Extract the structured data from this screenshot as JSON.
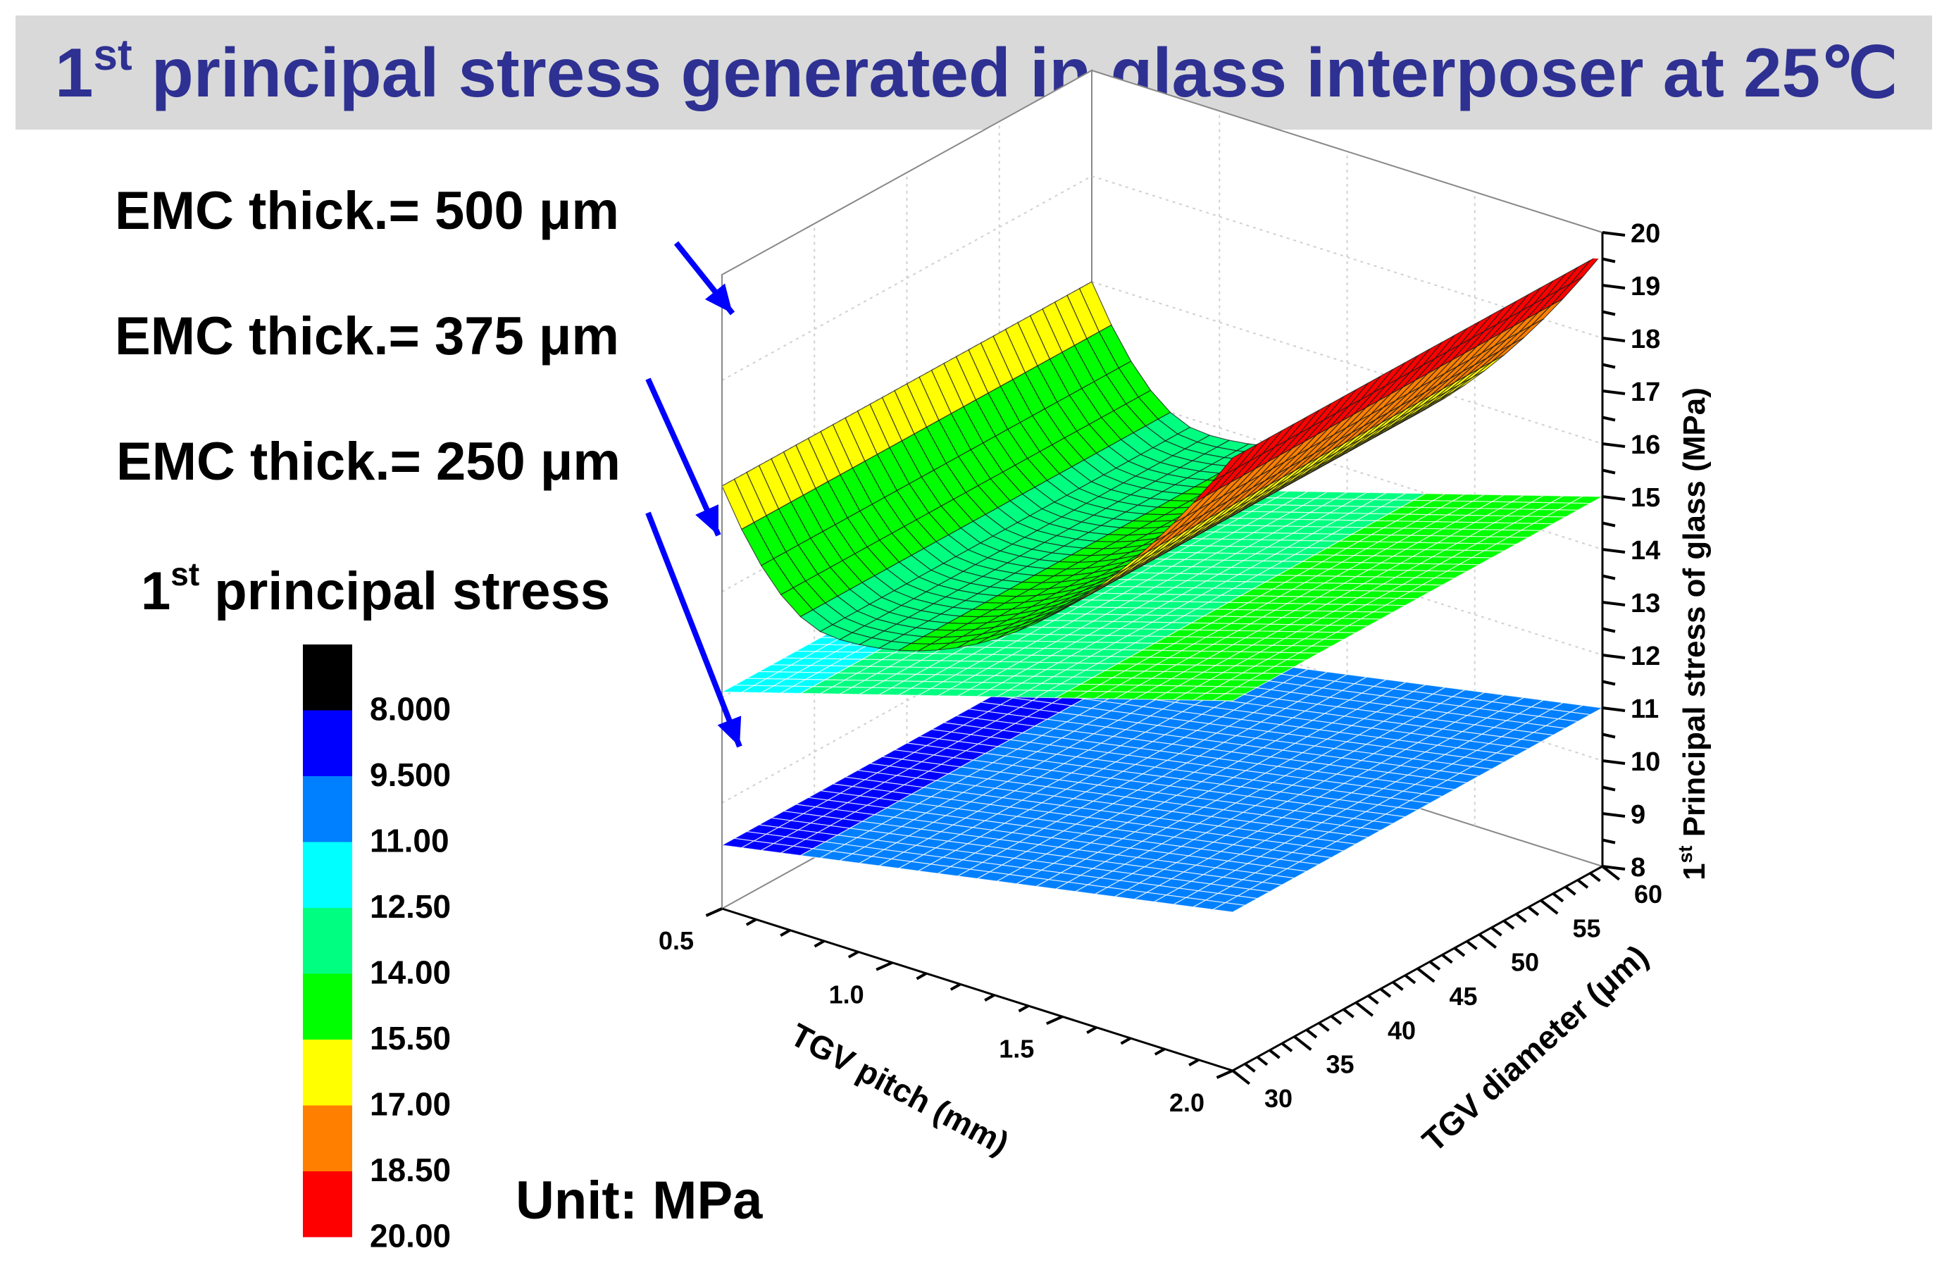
{
  "title": {
    "pre": "1",
    "sup": "st",
    "rest": " principal stress generated in glass interposer at 25℃",
    "color": "#2e3192"
  },
  "chart_data": {
    "type": "surface3d",
    "series": [
      {
        "name": "EMC thick.= 500 μm",
        "label": "EMC thick.= 500 μm",
        "corners_MPa": {
          "pitch0.5_dia30": 16.0,
          "pitch0.5_dia60": 16.0,
          "pitch2.0_dia30": 19.6,
          "pitch2.0_dia60": 19.6
        },
        "min_MPa": 13.8,
        "note": "stress rises steeply toward 2.0 mm pitch with a shallow minimum near 0.5 mm pitch"
      },
      {
        "name": "EMC thick.= 375 μm",
        "label": "EMC thick.= 375 μm",
        "corners_MPa": {
          "pitch0.5_dia30": 12.1,
          "pitch0.5_dia60": 12.1,
          "pitch2.0_dia30": 15.0,
          "pitch2.0_dia60": 15.0
        }
      },
      {
        "name": "EMC thick.= 250 μm",
        "label": "EMC thick.= 250 μm",
        "corners_MPa": {
          "pitch0.5_dia30": 9.2,
          "pitch0.5_dia60": 9.2,
          "pitch2.0_dia30": 11.0,
          "pitch2.0_dia60": 11.0
        }
      }
    ],
    "x_axis": {
      "label": "TGV pitch (mm)",
      "range": [
        0.5,
        2.0
      ],
      "ticks": [
        "0.5",
        "1.0",
        "1.5",
        "2.0"
      ]
    },
    "y_axis": {
      "label": "TGV diameter (μm)",
      "range": [
        30,
        60
      ],
      "ticks": [
        "30",
        "35",
        "40",
        "45",
        "50",
        "55",
        "60"
      ]
    },
    "z_axis": {
      "label_pre": "1",
      "label_sup": "st",
      "label_rest": " Principal stress of glass (MPa)",
      "range": [
        8,
        20
      ],
      "ticks": [
        "8",
        "9",
        "10",
        "11",
        "12",
        "13",
        "14",
        "15",
        "16",
        "17",
        "18",
        "19",
        "20"
      ]
    },
    "legend": {
      "title_pre": "1",
      "title_sup": "st",
      "title_rest": " principal stress",
      "unit": "Unit: MPa",
      "levels": [
        "8.000",
        "9.500",
        "11.00",
        "12.50",
        "14.00",
        "15.50",
        "17.00",
        "18.50",
        "20.00"
      ],
      "colors": [
        "#000000",
        "#0000ff",
        "#0080ff",
        "#00ffff",
        "#00ff80",
        "#00ff00",
        "#ffff00",
        "#ff8000",
        "#ff0000"
      ]
    },
    "annotation_color": "#0000ff"
  }
}
